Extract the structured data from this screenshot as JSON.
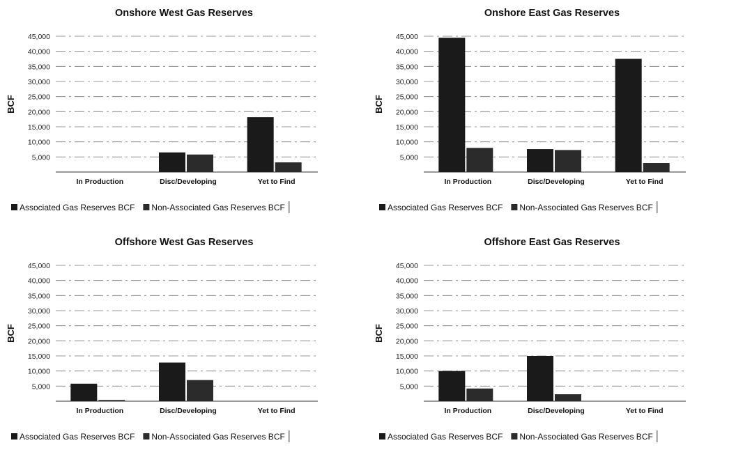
{
  "colors": {
    "associated": "#1a1a1a",
    "non_associated": "#2b2b2b",
    "grid": "#777777"
  },
  "chart_data": [
    {
      "type": "bar",
      "title": "Onshore West Gas Reserves",
      "ylabel": "BCF",
      "ylim": [
        0,
        45000
      ],
      "yticks": [
        "5,000",
        "10,000",
        "15,000",
        "20,000",
        "25,000",
        "30,000",
        "35,000",
        "40,000",
        "45,000"
      ],
      "categories": [
        "In Production",
        "Disc/Developing",
        "Yet to Find"
      ],
      "series": [
        {
          "name": "Associated Gas Reserves BCF",
          "values": [
            0,
            6500,
            18200
          ]
        },
        {
          "name": "Non-Associated Gas Reserves BCF",
          "values": [
            0,
            5800,
            3200
          ]
        }
      ],
      "legend": "bottom",
      "grid": true
    },
    {
      "type": "bar",
      "title": "Onshore East Gas Reserves",
      "ylabel": "BCF",
      "ylim": [
        0,
        45000
      ],
      "yticks": [
        "5,000",
        "10,000",
        "15,000",
        "20,000",
        "25,000",
        "30,000",
        "35,000",
        "40,000",
        "45,000"
      ],
      "categories": [
        "In Production",
        "Disc/Developing",
        "Yet to Find"
      ],
      "series": [
        {
          "name": "Associated Gas Reserves BCF",
          "values": [
            44500,
            7600,
            37500
          ]
        },
        {
          "name": "Non-Associated Gas Reserves BCF",
          "values": [
            8000,
            7300,
            3000
          ]
        }
      ],
      "legend": "bottom",
      "grid": true
    },
    {
      "type": "bar",
      "title": "Offshore West Gas Reserves",
      "ylabel": "BCF",
      "ylim": [
        0,
        45000
      ],
      "yticks": [
        "5,000",
        "10,000",
        "15,000",
        "20,000",
        "25,000",
        "30,000",
        "35,000",
        "40,000",
        "45,000"
      ],
      "categories": [
        "In Production",
        "Disc/Developing",
        "Yet to Find"
      ],
      "series": [
        {
          "name": "Associated Gas Reserves BCF",
          "values": [
            5800,
            12800,
            0
          ]
        },
        {
          "name": "Non-Associated Gas Reserves BCF",
          "values": [
            400,
            7000,
            0
          ]
        }
      ],
      "legend": "bottom",
      "grid": true
    },
    {
      "type": "bar",
      "title": "Offshore East Gas Reserves",
      "ylabel": "BCF",
      "ylim": [
        0,
        45000
      ],
      "yticks": [
        "5,000",
        "10,000",
        "15,000",
        "20,000",
        "25,000",
        "30,000",
        "35,000",
        "40,000",
        "45,000"
      ],
      "categories": [
        "In Production",
        "Disc/Developing",
        "Yet to Find"
      ],
      "series": [
        {
          "name": "Associated Gas Reserves BCF",
          "values": [
            10000,
            15000,
            0
          ]
        },
        {
          "name": "Non-Associated Gas Reserves BCF",
          "values": [
            4200,
            2300,
            0
          ]
        }
      ],
      "legend": "bottom",
      "grid": true
    }
  ]
}
